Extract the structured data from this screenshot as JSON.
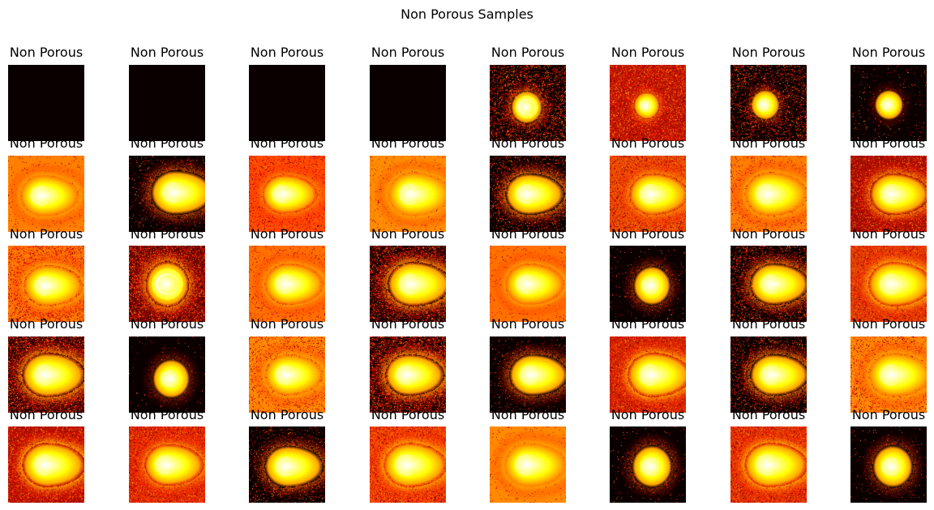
{
  "figure": {
    "title": "Non Porous Samples"
  },
  "grid": {
    "rows": 5,
    "cols": 8,
    "colormap": "hot",
    "panels": [
      {
        "title": "Non Porous",
        "bg": "#0a0000",
        "noise": 0,
        "blob": "none",
        "bx": 0.5,
        "by": 0.5,
        "bs": 0.3,
        "glow": 0
      },
      {
        "title": "Non Porous",
        "bg": "#0a0000",
        "noise": 0,
        "blob": "none",
        "bx": 0.5,
        "by": 0.5,
        "bs": 0.3,
        "glow": 0
      },
      {
        "title": "Non Porous",
        "bg": "#0a0000",
        "noise": 0,
        "blob": "none",
        "bx": 0.5,
        "by": 0.5,
        "bs": 0.3,
        "glow": 0
      },
      {
        "title": "Non Porous",
        "bg": "#0a0000",
        "noise": 0,
        "blob": "none",
        "bx": 0.5,
        "by": 0.5,
        "bs": 0.3,
        "glow": 0
      },
      {
        "title": "Non Porous",
        "bg": "#0a0000",
        "noise": 0.5,
        "blob": "ring",
        "bx": 0.48,
        "by": 0.55,
        "bs": 0.22,
        "glow": 0.6
      },
      {
        "title": "Non Porous",
        "bg": "#b81800",
        "noise": 0.8,
        "blob": "small",
        "bx": 0.48,
        "by": 0.53,
        "bs": 0.18,
        "glow": 0.7
      },
      {
        "title": "Non Porous",
        "bg": "#0a0000",
        "noise": 0.4,
        "blob": "small",
        "bx": 0.45,
        "by": 0.52,
        "bs": 0.2,
        "glow": 0.5
      },
      {
        "title": "Non Porous",
        "bg": "#0a0000",
        "noise": 0.05,
        "blob": "small",
        "bx": 0.5,
        "by": 0.52,
        "bs": 0.2,
        "glow": 0.3
      },
      {
        "title": "Non Porous",
        "bg": "#ff8000",
        "noise": 0.1,
        "blob": "plume",
        "bx": 0.45,
        "by": 0.52,
        "bs": 0.3,
        "glow": 0.9
      },
      {
        "title": "Non Porous",
        "bg": "#0a0000",
        "noise": 0.1,
        "blob": "plume",
        "bx": 0.6,
        "by": 0.48,
        "bs": 0.32,
        "glow": 0.6
      },
      {
        "title": "Non Porous",
        "bg": "#ff4a00",
        "noise": 0.4,
        "blob": "plume",
        "bx": 0.45,
        "by": 0.5,
        "bs": 0.28,
        "glow": 0.8
      },
      {
        "title": "Non Porous",
        "bg": "#ff8c00",
        "noise": 0.1,
        "blob": "plume",
        "bx": 0.55,
        "by": 0.5,
        "bs": 0.32,
        "glow": 0.9
      },
      {
        "title": "Non Porous",
        "bg": "#0a0000",
        "noise": 0.3,
        "blob": "plume",
        "bx": 0.5,
        "by": 0.5,
        "bs": 0.3,
        "glow": 0.7
      },
      {
        "title": "Non Porous",
        "bg": "#e85000",
        "noise": 0.6,
        "blob": "plume",
        "bx": 0.55,
        "by": 0.5,
        "bs": 0.3,
        "glow": 0.8
      },
      {
        "title": "Non Porous",
        "bg": "#ff8000",
        "noise": 0.3,
        "blob": "plume",
        "bx": 0.5,
        "by": 0.5,
        "bs": 0.32,
        "glow": 0.9
      },
      {
        "title": "Non Porous",
        "bg": "#a01000",
        "noise": 0.7,
        "blob": "plume",
        "bx": 0.55,
        "by": 0.5,
        "bs": 0.3,
        "glow": 0.8
      },
      {
        "title": "Non Porous",
        "bg": "#ff7a00",
        "noise": 0.6,
        "blob": "plume",
        "bx": 0.5,
        "by": 0.52,
        "bs": 0.3,
        "glow": 0.9
      },
      {
        "title": "Non Porous",
        "bg": "#5a0500",
        "noise": 0.8,
        "blob": "ring",
        "bx": 0.5,
        "by": 0.5,
        "bs": 0.3,
        "glow": 0.8
      },
      {
        "title": "Non Porous",
        "bg": "#ff7000",
        "noise": 0.2,
        "blob": "plume",
        "bx": 0.5,
        "by": 0.5,
        "bs": 0.3,
        "glow": 0.9
      },
      {
        "title": "Non Porous",
        "bg": "#1a0000",
        "noise": 0.6,
        "blob": "plume",
        "bx": 0.55,
        "by": 0.5,
        "bs": 0.32,
        "glow": 0.8
      },
      {
        "title": "Non Porous",
        "bg": "#ff7000",
        "noise": 0.1,
        "blob": "plume",
        "bx": 0.5,
        "by": 0.5,
        "bs": 0.3,
        "glow": 0.9
      },
      {
        "title": "Non Porous",
        "bg": "#0a0000",
        "noise": 0.05,
        "blob": "small",
        "bx": 0.55,
        "by": 0.52,
        "bs": 0.26,
        "glow": 0.5
      },
      {
        "title": "Non Porous",
        "bg": "#0a0000",
        "noise": 0.4,
        "blob": "plume",
        "bx": 0.55,
        "by": 0.5,
        "bs": 0.3,
        "glow": 0.7
      },
      {
        "title": "Non Porous",
        "bg": "#e04000",
        "noise": 0.6,
        "blob": "plume",
        "bx": 0.55,
        "by": 0.5,
        "bs": 0.32,
        "glow": 0.9
      },
      {
        "title": "Non Porous",
        "bg": "#2a0000",
        "noise": 0.7,
        "blob": "plume",
        "bx": 0.5,
        "by": 0.5,
        "bs": 0.32,
        "glow": 0.8
      },
      {
        "title": "Non Porous",
        "bg": "#0a0000",
        "noise": 0.02,
        "blob": "small",
        "bx": 0.55,
        "by": 0.55,
        "bs": 0.26,
        "glow": 0.4
      },
      {
        "title": "Non Porous",
        "bg": "#ff8a00",
        "noise": 0.4,
        "blob": "plume",
        "bx": 0.5,
        "by": 0.5,
        "bs": 0.3,
        "glow": 0.9
      },
      {
        "title": "Non Porous",
        "bg": "#1a0000",
        "noise": 0.7,
        "blob": "plume",
        "bx": 0.5,
        "by": 0.5,
        "bs": 0.3,
        "glow": 0.8
      },
      {
        "title": "Non Porous",
        "bg": "#0a0000",
        "noise": 0.1,
        "blob": "plume",
        "bx": 0.55,
        "by": 0.5,
        "bs": 0.3,
        "glow": 0.6
      },
      {
        "title": "Non Porous",
        "bg": "#d02800",
        "noise": 0.7,
        "blob": "plume",
        "bx": 0.55,
        "by": 0.5,
        "bs": 0.32,
        "glow": 0.9
      },
      {
        "title": "Non Porous",
        "bg": "#0a0000",
        "noise": 0.3,
        "blob": "plume",
        "bx": 0.55,
        "by": 0.5,
        "bs": 0.3,
        "glow": 0.7
      },
      {
        "title": "Non Porous",
        "bg": "#ff8a00",
        "noise": 0.4,
        "blob": "plume",
        "bx": 0.55,
        "by": 0.5,
        "bs": 0.32,
        "glow": 0.9
      },
      {
        "title": "Non Porous",
        "bg": "#b01400",
        "noise": 0.8,
        "blob": "plume",
        "bx": 0.5,
        "by": 0.5,
        "bs": 0.32,
        "glow": 0.9
      },
      {
        "title": "Non Porous",
        "bg": "#e03000",
        "noise": 0.7,
        "blob": "plume",
        "bx": 0.5,
        "by": 0.5,
        "bs": 0.3,
        "glow": 0.8
      },
      {
        "title": "Non Porous",
        "bg": "#0a0000",
        "noise": 0.2,
        "blob": "plume",
        "bx": 0.5,
        "by": 0.52,
        "bs": 0.3,
        "glow": 0.6
      },
      {
        "title": "Non Porous",
        "bg": "#f04800",
        "noise": 0.7,
        "blob": "plume",
        "bx": 0.5,
        "by": 0.5,
        "bs": 0.32,
        "glow": 0.9
      },
      {
        "title": "Non Porous",
        "bg": "#ff8a00",
        "noise": 0.1,
        "blob": "plume",
        "bx": 0.5,
        "by": 0.5,
        "bs": 0.32,
        "glow": 0.9
      },
      {
        "title": "Non Porous",
        "bg": "#0a0000",
        "noise": 0.05,
        "blob": "small",
        "bx": 0.55,
        "by": 0.52,
        "bs": 0.28,
        "glow": 0.5
      },
      {
        "title": "Non Porous",
        "bg": "#e03800",
        "noise": 0.7,
        "blob": "plume",
        "bx": 0.5,
        "by": 0.5,
        "bs": 0.32,
        "glow": 0.9
      },
      {
        "title": "Non Porous",
        "bg": "#0a0000",
        "noise": 0.05,
        "blob": "small",
        "bx": 0.55,
        "by": 0.52,
        "bs": 0.28,
        "glow": 0.5
      }
    ]
  }
}
